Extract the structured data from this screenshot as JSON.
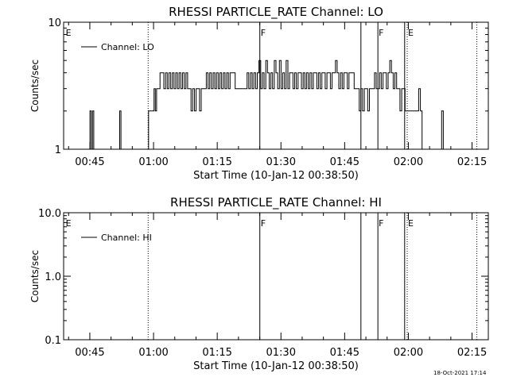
{
  "chart_data": [
    {
      "type": "line",
      "title": "RHESSI PARTICLE_RATE Channel: LO",
      "xlabel": "Start Time (10-Jan-12 00:38:50)",
      "ylabel": "Counts/sec",
      "y_scale": "log",
      "ylim": [
        1,
        10
      ],
      "y_ticks": [
        1,
        10
      ],
      "y_tick_labels": [
        "1",
        "10"
      ],
      "xlim_minutes": [
        0,
        100
      ],
      "x_ticks_minutes": [
        6.17,
        21.17,
        36.17,
        51.17,
        66.17,
        81.17,
        96.17
      ],
      "x_tick_labels": [
        "00:45",
        "01:00",
        "01:15",
        "01:30",
        "01:45",
        "02:00",
        "02:15"
      ],
      "legend": "Channel: LO",
      "legend_position": "top-left",
      "markers": [
        {
          "t": 0.3,
          "label": "E",
          "style": "none"
        },
        {
          "t": 19.9,
          "label": "",
          "style": "dotted"
        },
        {
          "t": 46.2,
          "label": "F",
          "style": "solid"
        },
        {
          "t": 70.0,
          "label": "",
          "style": "solid"
        },
        {
          "t": 74.0,
          "label": "F",
          "style": "solid"
        },
        {
          "t": 80.3,
          "label": "",
          "style": "solid"
        },
        {
          "t": 80.9,
          "label": "E",
          "style": "dotted"
        },
        {
          "t": 97.3,
          "label": "",
          "style": "dotted"
        }
      ],
      "series": [
        {
          "values": [
            [
              5.9,
              1
            ],
            [
              6.2,
              2
            ],
            [
              6.5,
              1
            ],
            [
              6.8,
              2
            ],
            [
              7.1,
              1
            ],
            [
              12.9,
              1
            ],
            [
              13.2,
              2
            ],
            [
              13.5,
              1
            ],
            [
              19.8,
              1
            ],
            [
              20.0,
              2
            ],
            [
              21.0,
              2
            ],
            [
              21.3,
              3
            ],
            [
              21.6,
              2
            ],
            [
              21.9,
              3
            ],
            [
              22.4,
              3
            ],
            [
              22.7,
              4
            ],
            [
              23.3,
              4
            ],
            [
              23.6,
              3
            ],
            [
              24.0,
              4
            ],
            [
              24.4,
              3
            ],
            [
              24.8,
              4
            ],
            [
              25.2,
              3
            ],
            [
              25.6,
              4
            ],
            [
              26.0,
              3
            ],
            [
              26.4,
              4
            ],
            [
              26.8,
              3
            ],
            [
              27.2,
              4
            ],
            [
              27.6,
              3
            ],
            [
              28.0,
              4
            ],
            [
              28.4,
              3
            ],
            [
              28.8,
              4
            ],
            [
              29.2,
              3
            ],
            [
              29.6,
              3
            ],
            [
              30.0,
              2
            ],
            [
              30.4,
              3
            ],
            [
              30.8,
              2
            ],
            [
              31.2,
              3
            ],
            [
              31.6,
              3
            ],
            [
              32.0,
              2
            ],
            [
              32.4,
              3
            ],
            [
              32.8,
              3
            ],
            [
              33.2,
              3
            ],
            [
              33.6,
              4
            ],
            [
              34.0,
              3
            ],
            [
              34.4,
              4
            ],
            [
              34.8,
              3
            ],
            [
              35.2,
              4
            ],
            [
              35.6,
              3
            ],
            [
              36.0,
              4
            ],
            [
              36.4,
              3
            ],
            [
              36.8,
              4
            ],
            [
              37.2,
              3
            ],
            [
              37.6,
              4
            ],
            [
              38.0,
              3
            ],
            [
              38.4,
              4
            ],
            [
              38.8,
              3
            ],
            [
              39.2,
              4
            ],
            [
              39.6,
              4
            ],
            [
              40.0,
              4
            ],
            [
              40.4,
              3
            ],
            [
              40.8,
              3
            ],
            [
              41.2,
              3
            ],
            [
              41.6,
              3
            ],
            [
              42.0,
              3
            ],
            [
              42.4,
              3
            ],
            [
              42.8,
              3
            ],
            [
              43.2,
              4
            ],
            [
              43.6,
              3
            ],
            [
              44.0,
              4
            ],
            [
              44.4,
              3
            ],
            [
              44.8,
              4
            ],
            [
              45.2,
              3
            ],
            [
              45.6,
              4
            ],
            [
              46.0,
              5
            ],
            [
              46.4,
              3
            ],
            [
              46.8,
              4
            ],
            [
              47.2,
              3
            ],
            [
              47.6,
              5
            ],
            [
              48.0,
              4
            ],
            [
              48.4,
              3
            ],
            [
              48.8,
              4
            ],
            [
              49.2,
              3
            ],
            [
              49.6,
              5
            ],
            [
              50.0,
              4
            ],
            [
              50.4,
              3
            ],
            [
              50.8,
              5
            ],
            [
              51.2,
              3
            ],
            [
              51.6,
              4
            ],
            [
              52.0,
              3
            ],
            [
              52.4,
              5
            ],
            [
              52.8,
              3
            ],
            [
              53.2,
              4
            ],
            [
              53.6,
              4
            ],
            [
              54.0,
              3
            ],
            [
              54.4,
              4
            ],
            [
              54.8,
              3
            ],
            [
              55.2,
              4
            ],
            [
              55.6,
              4
            ],
            [
              56.0,
              3
            ],
            [
              56.4,
              4
            ],
            [
              56.8,
              3
            ],
            [
              57.2,
              4
            ],
            [
              57.6,
              3
            ],
            [
              58.0,
              4
            ],
            [
              58.4,
              3
            ],
            [
              58.8,
              4
            ],
            [
              59.2,
              4
            ],
            [
              59.6,
              3
            ],
            [
              60.0,
              4
            ],
            [
              60.4,
              3
            ],
            [
              60.8,
              4
            ],
            [
              61.2,
              4
            ],
            [
              61.6,
              3
            ],
            [
              62.0,
              4
            ],
            [
              62.4,
              4
            ],
            [
              62.8,
              3
            ],
            [
              63.2,
              4
            ],
            [
              63.6,
              4
            ],
            [
              64.0,
              5
            ],
            [
              64.4,
              4
            ],
            [
              64.8,
              3
            ],
            [
              65.2,
              4
            ],
            [
              65.6,
              3
            ],
            [
              66.0,
              4
            ],
            [
              66.4,
              4
            ],
            [
              66.8,
              3
            ],
            [
              67.2,
              4
            ],
            [
              67.6,
              4
            ],
            [
              68.0,
              4
            ],
            [
              68.4,
              3
            ],
            [
              68.8,
              3
            ],
            [
              69.2,
              3
            ],
            [
              69.6,
              2
            ],
            [
              70.0,
              3
            ],
            [
              70.4,
              2
            ],
            [
              70.8,
              3
            ],
            [
              71.2,
              3
            ],
            [
              71.6,
              2
            ],
            [
              72.0,
              3
            ],
            [
              72.4,
              3
            ],
            [
              72.8,
              3
            ],
            [
              73.2,
              4
            ],
            [
              73.6,
              3
            ],
            [
              74.0,
              3
            ],
            [
              74.4,
              4
            ],
            [
              74.8,
              3
            ],
            [
              75.2,
              4
            ],
            [
              75.6,
              4
            ],
            [
              76.0,
              3
            ],
            [
              76.4,
              4
            ],
            [
              76.8,
              5
            ],
            [
              77.2,
              4
            ],
            [
              77.6,
              3
            ],
            [
              78.0,
              4
            ],
            [
              78.4,
              3
            ],
            [
              78.8,
              3
            ],
            [
              79.2,
              2
            ],
            [
              79.6,
              3
            ],
            [
              80.0,
              3
            ],
            [
              80.4,
              2
            ],
            [
              80.8,
              2
            ],
            [
              81.6,
              2
            ],
            [
              82.4,
              2
            ],
            [
              83.2,
              2
            ],
            [
              83.6,
              3
            ],
            [
              84.0,
              2
            ],
            [
              84.4,
              1
            ],
            [
              88.6,
              1
            ],
            [
              89.0,
              2
            ],
            [
              89.4,
              1
            ]
          ]
        }
      ]
    },
    {
      "type": "line",
      "title": "RHESSI PARTICLE_RATE Channel: HI",
      "xlabel": "Start Time (10-Jan-12 00:38:50)",
      "ylabel": "Counts/sec",
      "y_scale": "log",
      "ylim": [
        0.1,
        10
      ],
      "y_ticks": [
        0.1,
        1,
        10
      ],
      "y_tick_labels": [
        "0.1",
        "1.0",
        "10.0"
      ],
      "xlim_minutes": [
        0,
        100
      ],
      "x_ticks_minutes": [
        6.17,
        21.17,
        36.17,
        51.17,
        66.17,
        81.17,
        96.17
      ],
      "x_tick_labels": [
        "00:45",
        "01:00",
        "01:15",
        "01:30",
        "01:45",
        "02:00",
        "02:15"
      ],
      "legend": "Channel: HI",
      "legend_position": "top-left",
      "markers": [
        {
          "t": 0.3,
          "label": "E",
          "style": "none"
        },
        {
          "t": 19.9,
          "label": "",
          "style": "dotted"
        },
        {
          "t": 46.2,
          "label": "F",
          "style": "solid"
        },
        {
          "t": 70.0,
          "label": "",
          "style": "solid"
        },
        {
          "t": 74.0,
          "label": "F",
          "style": "solid"
        },
        {
          "t": 80.3,
          "label": "",
          "style": "solid"
        },
        {
          "t": 80.9,
          "label": "E",
          "style": "dotted"
        },
        {
          "t": 97.3,
          "label": "",
          "style": "dotted"
        }
      ],
      "series": [
        {
          "values": []
        }
      ]
    }
  ],
  "footer": {
    "timestamp": "18-Oct-2021 17:14"
  }
}
